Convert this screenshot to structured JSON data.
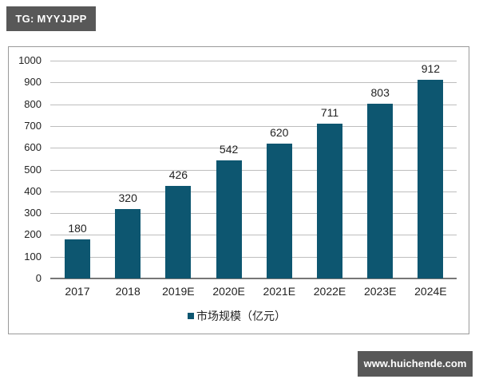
{
  "watermark_top": "TG: MYYJJPP",
  "watermark_bottom": "www.huichende.com",
  "colors": {
    "bar": "#0d5670",
    "grid": "#bdbdbd",
    "axis": "#777777",
    "watermark_bg": "#585858"
  },
  "chart_data": {
    "type": "bar",
    "title": "",
    "xlabel": "",
    "ylabel": "",
    "categories": [
      "2017",
      "2018",
      "2019E",
      "2020E",
      "2021E",
      "2022E",
      "2023E",
      "2024E"
    ],
    "series": [
      {
        "name": "市场规模（亿元）",
        "values": [
          180,
          320,
          426,
          542,
          620,
          711,
          803,
          912
        ]
      }
    ],
    "value_labels": [
      "180",
      "320",
      "426",
      "542",
      "620",
      "711",
      "803",
      "912"
    ],
    "ylim": [
      0,
      1000
    ],
    "yticks": [
      "0",
      "100",
      "200",
      "300",
      "400",
      "500",
      "600",
      "700",
      "800",
      "900",
      "1000"
    ],
    "grid": true,
    "legend_position": "bottom"
  },
  "legend": {
    "label": "市场规模（亿元）"
  }
}
